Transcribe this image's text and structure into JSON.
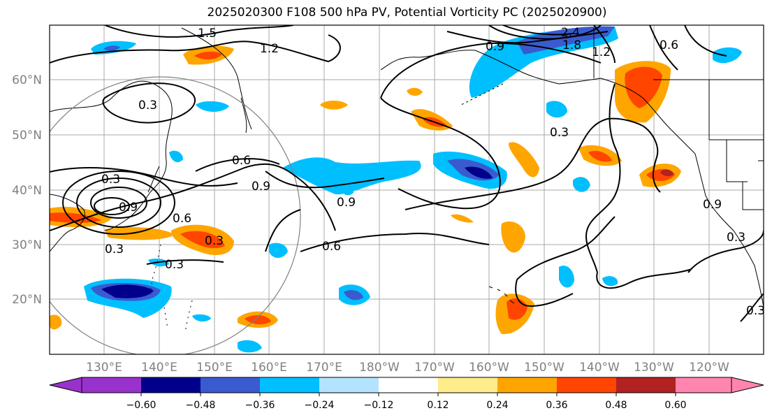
{
  "title": "2025020300 F108 500 hPa PV, Potential Vorticity PC (2025020900)",
  "map": {
    "lat_ticks": [
      "60°N",
      "50°N",
      "40°N",
      "30°N",
      "20°N"
    ],
    "lon_ticks": [
      "130°E",
      "140°E",
      "150°E",
      "160°E",
      "170°E",
      "180°W",
      "170°W",
      "160°W",
      "150°W",
      "140°W",
      "130°W",
      "120°W"
    ],
    "contour_labels": [
      "1.5",
      "1.2",
      "2.4",
      "1.8",
      "1.2",
      "0.9",
      "0.6",
      "0.3",
      "0.3",
      "0.6",
      "0.9",
      "0.9",
      "0.6",
      "0.3",
      "0.6",
      "0.3",
      "0.3",
      "0.9",
      "0.3",
      "0.9",
      "0.3",
      "0.3"
    ],
    "colors": {
      "purple": "#9932cc",
      "navy": "#00008b",
      "royal": "#3a5bd0",
      "deepsky": "#00bfff",
      "lightblue": "#b3e3ff",
      "white": "#ffffff",
      "lightyellow": "#ffec8b",
      "orange": "#ffa500",
      "orangered": "#ff4500",
      "firebrick": "#b22222",
      "pink": "#ff85b0"
    }
  },
  "colorbar": {
    "tick_labels": [
      "−0.60",
      "−0.48",
      "−0.36",
      "−0.24",
      "−0.12",
      "0.12",
      "0.24",
      "0.36",
      "0.48",
      "0.60"
    ]
  }
}
